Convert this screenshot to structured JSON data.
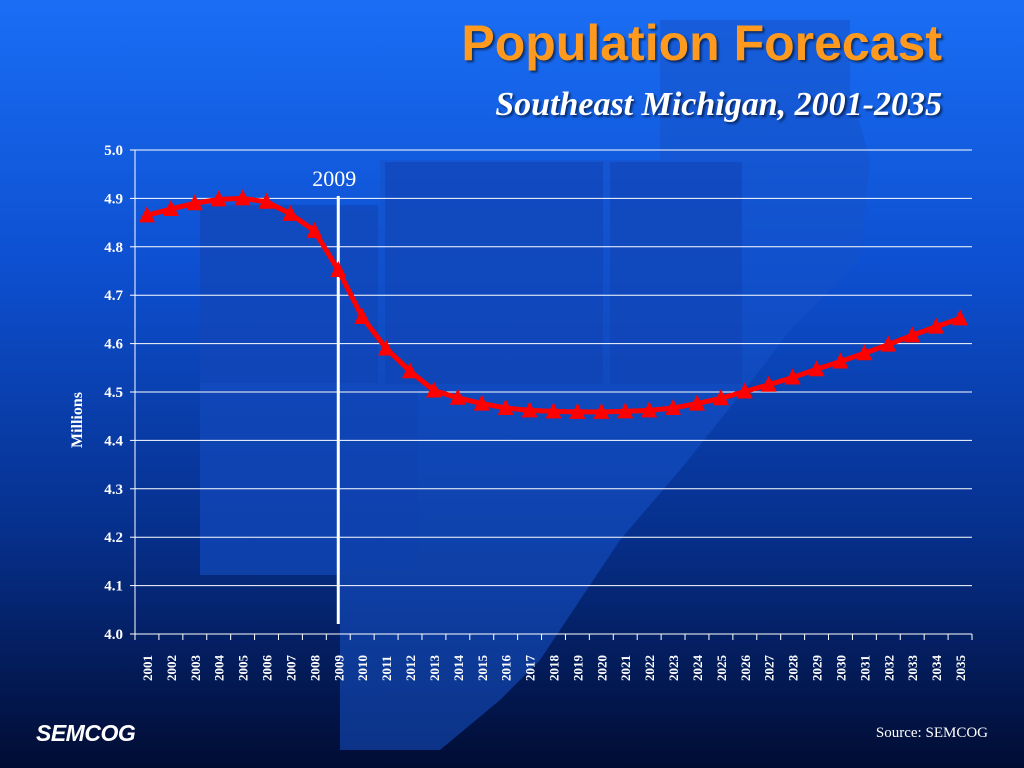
{
  "slide": {
    "title": "Population Forecast",
    "subtitle": "Southeast Michigan, 2001-2035",
    "logo": "SEMCOG",
    "source": "Source: SEMCOG"
  },
  "colors": {
    "title": "#ff9a1e",
    "series": "#ff0000",
    "marker_line": "#ffffff",
    "grid": "#ffffff",
    "text": "#ffffff"
  },
  "chart_data": {
    "type": "line",
    "title": "",
    "xlabel": "",
    "ylabel": "Millions",
    "ylim": [
      4.0,
      5.0
    ],
    "yticks": [
      "4.0",
      "4.1",
      "4.2",
      "4.3",
      "4.4",
      "4.5",
      "4.6",
      "4.7",
      "4.8",
      "4.9",
      "5.0"
    ],
    "grid": true,
    "categories": [
      "2001",
      "2002",
      "2003",
      "2004",
      "2005",
      "2006",
      "2007",
      "2008",
      "2009",
      "2010",
      "2011",
      "2012",
      "2013",
      "2014",
      "2015",
      "2016",
      "2017",
      "2018",
      "2019",
      "2020",
      "2021",
      "2022",
      "2023",
      "2024",
      "2025",
      "2026",
      "2027",
      "2028",
      "2029",
      "2030",
      "2031",
      "2032",
      "2033",
      "2034",
      "2035"
    ],
    "series": [
      {
        "marker": "triangle",
        "color": "#ff0000",
        "values": [
          4.865,
          4.878,
          4.89,
          4.898,
          4.9,
          4.893,
          4.868,
          4.833,
          4.752,
          4.655,
          4.59,
          4.543,
          4.503,
          4.488,
          4.476,
          4.467,
          4.462,
          4.46,
          4.459,
          4.459,
          4.46,
          4.462,
          4.467,
          4.476,
          4.487,
          4.501,
          4.515,
          4.53,
          4.547,
          4.563,
          4.58,
          4.598,
          4.617,
          4.635,
          4.652
        ]
      }
    ],
    "annotations": [
      {
        "x": "2009",
        "label": "2009",
        "type": "vertical-line"
      }
    ]
  }
}
